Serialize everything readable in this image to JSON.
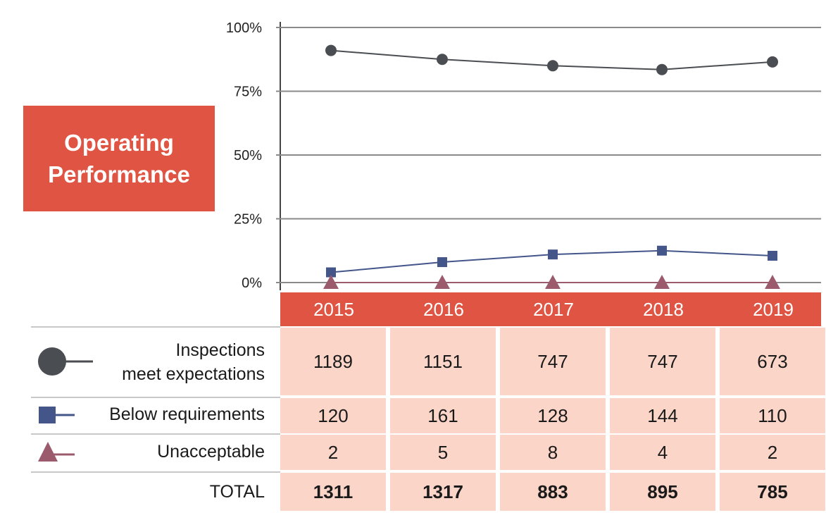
{
  "title_lines": [
    "Operating",
    "Performance"
  ],
  "chart_data": {
    "type": "line",
    "categories": [
      "2015",
      "2016",
      "2017",
      "2018",
      "2019"
    ],
    "y_ticks": [
      "100%",
      "75%",
      "50%",
      "25%",
      "0%"
    ],
    "ylim": [
      0,
      100
    ],
    "grid": true,
    "series": [
      {
        "name": "Inspections meet expectations",
        "values": [
          91,
          87.5,
          85,
          83.5,
          86.5
        ],
        "color": "#4a4d52",
        "marker": "circle"
      },
      {
        "name": "Below requirements",
        "values": [
          4,
          8,
          11,
          12.5,
          10.5
        ],
        "color": "#44558a",
        "marker": "square"
      },
      {
        "name": "Unacceptable",
        "values": [
          0,
          0,
          0,
          0,
          0
        ],
        "color": "#9c5b6c",
        "marker": "triangle"
      }
    ]
  },
  "table": {
    "rows": [
      {
        "label_lines": [
          "Inspections",
          "meet expectations"
        ],
        "icon": "circle-line-icon",
        "values": [
          "1189",
          "1151",
          "747",
          "747",
          "673"
        ]
      },
      {
        "label_lines": [
          "Below requirements"
        ],
        "icon": "square-line-icon",
        "values": [
          "120",
          "161",
          "128",
          "144",
          "110"
        ]
      },
      {
        "label_lines": [
          "Unacceptable"
        ],
        "icon": "triangle-line-icon",
        "values": [
          "2",
          "5",
          "8",
          "4",
          "2"
        ]
      },
      {
        "label_lines": [
          "TOTAL"
        ],
        "icon": "",
        "values": [
          "1311",
          "1317",
          "883",
          "895",
          "785"
        ]
      }
    ]
  }
}
